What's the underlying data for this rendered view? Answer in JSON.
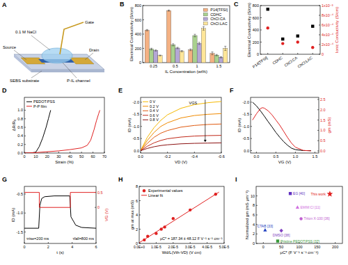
{
  "diagram": {
    "panel": "A",
    "labels": {
      "electrolyte": "0.1 M NaCl",
      "gate": "Gate",
      "source": "Source",
      "drain": "Drain",
      "substrate": "SEBS substrate",
      "channel": "P-IL channel"
    }
  },
  "chart_data": [
    {
      "panel": "B",
      "type": "bar",
      "x_label": "IL Concentration (wt%)",
      "y_label": "Electrical Conductivity (S/cm)",
      "categories": [
        "0.25",
        "0.5",
        "1",
        "1.5"
      ],
      "ylim": [
        0,
        800
      ],
      "yticks": [
        0,
        200,
        400,
        600,
        800
      ],
      "legend": "upper right",
      "series": [
        {
          "name": "P14[TFSI]",
          "color": "#f4b183",
          "values": [
            455,
            730,
            180,
            130
          ],
          "errors": [
            10,
            8,
            12,
            20
          ]
        },
        {
          "name": "CDHC",
          "color": "#a9d18e",
          "values": [
            190,
            250,
            380,
            105
          ],
          "errors": [
            12,
            15,
            18,
            10
          ]
        },
        {
          "name": "ChCl:CA",
          "color": "#b4a7d6",
          "values": [
            170,
            205,
            270,
            75
          ],
          "errors": [
            8,
            10,
            15,
            8
          ]
        },
        {
          "name": "ChCl:LAC",
          "color": "#ffe699",
          "values": [
            100,
            160,
            480,
            200
          ],
          "errors": [
            6,
            10,
            25,
            30
          ]
        }
      ]
    },
    {
      "panel": "C",
      "type": "scatter",
      "y_label": "Electrical Conductivity (S/cm)",
      "y2_label": "Ionic Conductivity (S/cm)",
      "categories": [
        "P14[TFSI]",
        "CDHC",
        "ChCl:CA",
        "ChCl:LAC"
      ],
      "ylim": [
        0,
        800
      ],
      "yticks": [
        0,
        200,
        400,
        600,
        800
      ],
      "y2lim": [
        0,
        0.001
      ],
      "y2ticks": [
        0,
        {
          "value": 0.0002,
          "label": "2x10⁻⁴"
        },
        {
          "value": 0.0004,
          "label": "4x10⁻⁴"
        },
        {
          "value": 0.0006,
          "label": "6x10⁻⁴"
        },
        {
          "value": 0.0008,
          "label": "8x10⁻⁴"
        },
        {
          "value": 0.001,
          "label": "1x10⁻³"
        }
      ],
      "series": [
        {
          "color": "#000000",
          "marker": "square",
          "values": [
            740,
            250,
            300,
            460
          ]
        },
        {
          "color": "#e02020",
          "marker": "circle",
          "axis": "y2",
          "values": [
            0.00054,
            0.00022,
            0.00025,
            0.00014
          ]
        }
      ]
    },
    {
      "panel": "D",
      "type": "line",
      "x_label": "Strain (%)",
      "y_label": "ΔR/R₀",
      "xlim": [
        0,
        70
      ],
      "xticks": [
        0,
        10,
        20,
        30,
        40,
        50,
        60,
        70
      ],
      "ylim": [
        0,
        1.3
      ],
      "yticks": [
        {
          "value": 0,
          "label": "0.0"
        },
        0.2,
        0.4,
        0.6,
        0.8,
        {
          "value": 1,
          "label": "1.0"
        }
      ],
      "legend": "upper left",
      "series": [
        {
          "name": "PEDOT:PSS",
          "color": "#000000",
          "x": [
            0,
            5,
            10,
            13,
            16,
            19,
            21,
            23
          ],
          "values": [
            0,
            0,
            0.02,
            0.15,
            0.35,
            0.6,
            0.8,
            1.0
          ]
        },
        {
          "name": "P-P film",
          "color": "#e02020",
          "x": [
            0,
            10,
            20,
            30,
            40,
            50,
            55,
            58,
            61,
            63,
            65,
            66
          ],
          "values": [
            0,
            0.01,
            0.03,
            0.05,
            0.08,
            0.12,
            0.18,
            0.3,
            0.55,
            0.75,
            0.92,
            1.0
          ]
        }
      ]
    },
    {
      "panel": "E",
      "type": "line",
      "x_label": "VD (V)",
      "y_label": "ID (mA)",
      "xlim": [
        0,
        -0.6
      ],
      "xticks": [
        {
          "value": 0,
          "label": "0.0"
        },
        -0.2,
        -0.4,
        -0.6
      ],
      "ylim": [
        0.1,
        -2.2
      ],
      "yticks": [
        {
          "value": 0,
          "label": "0.0"
        },
        -0.5,
        {
          "value": -1,
          "label": "-1.0"
        },
        -1.5,
        {
          "value": -2,
          "label": "-2.0"
        }
      ],
      "legend": "upper left",
      "annotations": [
        "VGS"
      ],
      "x": [
        0,
        -0.05,
        -0.1,
        -0.15,
        -0.2,
        -0.3,
        -0.4,
        -0.5,
        -0.6
      ],
      "series": [
        {
          "name": "0 V",
          "color": "#f5b800",
          "values": [
            0,
            -0.55,
            -0.95,
            -1.25,
            -1.48,
            -1.75,
            -1.9,
            -1.98,
            -2.03
          ]
        },
        {
          "name": "0.2 V",
          "color": "#f08a00",
          "values": [
            0,
            -0.42,
            -0.75,
            -1.0,
            -1.15,
            -1.35,
            -1.45,
            -1.5,
            -1.53
          ]
        },
        {
          "name": "0.4 V",
          "color": "#e05a10",
          "values": [
            0,
            -0.3,
            -0.55,
            -0.72,
            -0.83,
            -0.97,
            -1.04,
            -1.08,
            -1.1
          ]
        },
        {
          "name": "0.6 V",
          "color": "#c02818",
          "values": [
            0,
            -0.18,
            -0.32,
            -0.42,
            -0.49,
            -0.56,
            -0.6,
            -0.62,
            -0.63
          ]
        },
        {
          "name": "0.8 V",
          "color": "#8b1010",
          "values": [
            0,
            -0.09,
            -0.16,
            -0.21,
            -0.24,
            -0.28,
            -0.3,
            -0.31,
            -0.32
          ]
        }
      ]
    },
    {
      "panel": "F",
      "type": "line",
      "x_label": "VG (V)",
      "y_label": "ID (mA)",
      "y2_label": "gm (mS)",
      "xlim": [
        -0.15,
        1.6
      ],
      "xticks": [
        {
          "value": 0,
          "label": "0.0"
        },
        0.5,
        {
          "value": 1,
          "label": "1.0"
        },
        1.5
      ],
      "ylim": [
        0.1,
        -2.2
      ],
      "yticks": [
        {
          "value": 0,
          "label": "0.0"
        },
        -0.5,
        {
          "value": -1,
          "label": "-1.0"
        },
        -1.5,
        {
          "value": -2,
          "label": "-2.0"
        }
      ],
      "y2lim": [
        -0.1,
        2.6
      ],
      "y2ticks": [
        {
          "value": 0,
          "label": "0.0"
        },
        0.5,
        {
          "value": 1,
          "label": "1.0"
        },
        1.5,
        {
          "value": 2,
          "label": "2.0"
        },
        2.5
      ],
      "series": [
        {
          "color": "#000000",
          "x": [
            -0.1,
            0,
            0.1,
            0.2,
            0.3,
            0.4,
            0.5,
            0.6,
            0.7,
            0.8,
            0.9,
            1.0,
            1.2,
            1.4
          ],
          "values": [
            -2.0,
            -1.85,
            -1.65,
            -1.43,
            -1.2,
            -0.98,
            -0.75,
            -0.55,
            -0.37,
            -0.22,
            -0.1,
            -0.04,
            0,
            0
          ]
        },
        {
          "color": "#e02020",
          "axis": "y2",
          "x": [
            -0.1,
            0,
            0.1,
            0.15,
            0.2,
            0.3,
            0.4,
            0.5,
            0.6,
            0.7,
            0.8,
            0.9,
            1.0,
            1.2,
            1.4
          ],
          "values": [
            1.5,
            1.8,
            2.05,
            2.1,
            2.08,
            1.95,
            1.75,
            1.5,
            1.25,
            0.95,
            0.65,
            0.38,
            0.18,
            0.03,
            0
          ]
        }
      ]
    },
    {
      "panel": "G",
      "type": "line",
      "x_label": "t (s)",
      "y_label": "ID (mA)",
      "y2_label": "VG (V)",
      "xlim": [
        0,
        6
      ],
      "xticks": [
        0,
        2,
        4,
        6
      ],
      "ylim": [
        -1.8,
        -0.3
      ],
      "yticks": [
        -1.5,
        {
          "value": -1,
          "label": "-1.0"
        },
        -0.5
      ],
      "y2lim": [
        -1.2,
        0.7
      ],
      "y2ticks": [
        0,
        0.5
      ],
      "annotations": [
        "τrise=200 ms",
        "τfall=800 ms"
      ],
      "series": [
        {
          "color": "#000000",
          "x": [
            0,
            1.2,
            1.3,
            1.45,
            1.7,
            2.5,
            3.8,
            3.9,
            4.3,
            4.8,
            6
          ],
          "values": [
            -1.4,
            -1.4,
            -0.8,
            -0.62,
            -0.57,
            -0.55,
            -0.55,
            -1.1,
            -1.32,
            -1.38,
            -1.4
          ]
        },
        {
          "color": "#e02020",
          "axis": "y2",
          "x": [
            0,
            1.25,
            1.25,
            3.85,
            3.85,
            6
          ],
          "values": [
            0.5,
            0.5,
            0,
            0,
            0.5,
            0.5
          ]
        }
      ]
    },
    {
      "panel": "H",
      "type": "scatter",
      "x_label": "Wd/L(Vth-VD) (V cm)",
      "y_label": "gm at max (mS)",
      "xlim": [
        0,
        5e-05
      ],
      "xticks": [
        {
          "value": 0,
          "label": "0.0E+0"
        },
        {
          "value": 1e-05,
          "label": "1.0E-5"
        },
        {
          "value": 2e-05,
          "label": "2.0E-5"
        },
        {
          "value": 3e-05,
          "label": "3.0E-5"
        },
        {
          "value": 4e-05,
          "label": "4.0E-5"
        },
        {
          "value": 5e-05,
          "label": "5.0E-5"
        }
      ],
      "ylim": [
        0,
        8
      ],
      "yticks": [
        0,
        2,
        4,
        6,
        8
      ],
      "legend": "upper left",
      "annotations": [
        "μC* = 187.34 ± 48.12 F V⁻¹ s⁻¹ cm⁻¹"
      ],
      "series": [
        {
          "name": "Experimental values",
          "color": "#e02020",
          "marker": "circle",
          "x": [
            3e-06,
            5e-06,
            1e-05,
            1.3e-05,
            1.5e-05,
            2e-05,
            3e-05,
            4.5e-05
          ],
          "values": [
            0.5,
            1.0,
            1.4,
            2.0,
            2.3,
            3.5,
            4.7,
            6.9
          ]
        },
        {
          "name": "Linear fit",
          "type": "line",
          "color": "#e02020",
          "x": [
            0,
            4.7e-05
          ],
          "values": [
            0.1,
            7.2
          ]
        }
      ]
    },
    {
      "panel": "I",
      "type": "scatter",
      "x_label": "μC* (F V⁻¹ s⁻¹ cm⁻¹)",
      "y_label": "Normalized gm (mS μm⁻¹)",
      "xlim": [
        -20,
        220
      ],
      "xticks": [
        0,
        50,
        100,
        150,
        200
      ],
      "ylim": [
        0,
        12
      ],
      "yticks": [
        0,
        2,
        4,
        6,
        8,
        10
      ],
      "legend": "inline",
      "series": [
        {
          "name": "Pristine PEDOT:PSS [37]",
          "color": "#3a9a3a",
          "marker": "square",
          "x": [
            40
          ],
          "values": [
            0.5
          ]
        },
        {
          "name": "CTAB [33]",
          "color": "#2040c0",
          "marker": "triangle",
          "x": [
            5
          ],
          "values": [
            2.8
          ]
        },
        {
          "name": "DMSO [38]",
          "color": "#8040c0",
          "marker": "diamond",
          "x": [
            50
          ],
          "values": [
            2.7
          ]
        },
        {
          "name": "Triton X-100 [36]",
          "color": "#c060d0",
          "marker": "circle",
          "x": [
            105
          ],
          "values": [
            5.2
          ]
        },
        {
          "name": "EMIM:Cl [11]",
          "color": "#d070e0",
          "marker": "triangle",
          "x": [
            95
          ],
          "values": [
            7.6
          ]
        },
        {
          "name": "EG [40]",
          "color": "#6030c0",
          "marker": "square",
          "x": [
            75
          ],
          "values": [
            10.5
          ]
        },
        {
          "name": "This work",
          "color": "#e02020",
          "marker": "star",
          "x": [
            185
          ],
          "values": [
            10.4
          ]
        }
      ]
    }
  ]
}
